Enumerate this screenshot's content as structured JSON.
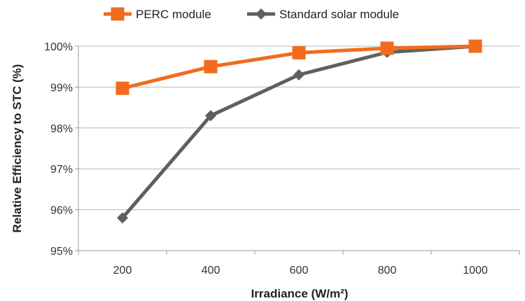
{
  "chart_data": {
    "type": "line",
    "x": [
      200,
      400,
      600,
      800,
      1000
    ],
    "series": [
      {
        "name": "PERC module",
        "values": [
          98.97,
          99.5,
          99.84,
          99.95,
          100
        ],
        "color": "#f26b1d",
        "marker": "square"
      },
      {
        "name": "Standard solar module",
        "values": [
          95.8,
          98.3,
          99.3,
          99.85,
          100
        ],
        "color": "#5f5f5f",
        "marker": "diamond"
      }
    ],
    "xlabel": "Irradiance (W/m²)",
    "ylabel": "Relative Efficiency to STC (%)",
    "ylim": [
      95,
      100
    ],
    "yticks": [
      95,
      96,
      97,
      98,
      99,
      100
    ],
    "ytick_labels": [
      "95%",
      "96%",
      "97%",
      "98%",
      "99%",
      "100%"
    ],
    "xtick_labels": [
      "200",
      "400",
      "600",
      "800",
      "1000"
    ],
    "grid": true,
    "legend": "top"
  }
}
